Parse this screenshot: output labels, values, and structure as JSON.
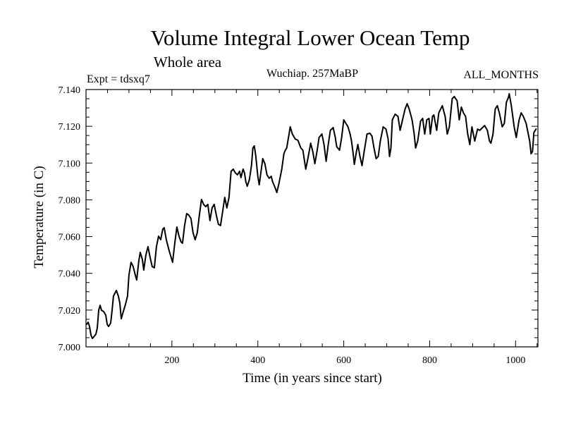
{
  "chart_data": {
    "type": "line",
    "title": "Volume Integral Lower Ocean Temp",
    "subtitle": "Whole area",
    "annotations": {
      "experiment": "Expt = tdsxq7",
      "period": "Wuchiap. 257MaBP",
      "season": "ALL_MONTHS"
    },
    "xlabel": "Time (in years since start)",
    "ylabel": "Temperature (in C)",
    "xlim": [
      0,
      1052
    ],
    "ylim": [
      7.0,
      7.14
    ],
    "x_major_step": 200,
    "x_minor_step": 50,
    "y_major_step": 0.02,
    "y_minor_step": 0.005,
    "x_tick_labels": [
      "200",
      "400",
      "600",
      "800",
      "1000"
    ],
    "y_tick_labels": [
      "7.000",
      "7.020",
      "7.040",
      "7.060",
      "7.080",
      "7.100",
      "7.120",
      "7.140"
    ],
    "grid": false,
    "legend": "none",
    "series": [
      {
        "name": "Volume integral lower ocean temperature",
        "color": "#000000",
        "x": [
          1.6,
          4.9,
          8.2,
          11.5,
          14.8,
          18.0,
          23.0,
          26.2,
          29.5,
          32.8,
          36.1,
          41.0,
          45.9,
          49.2,
          52.5,
          57.4,
          60.7,
          63.9,
          70.5,
          75.4,
          78.7,
          82.0,
          86.9,
          91.8,
          96.7,
          100.0,
          104.9,
          109.8,
          114.8,
          118.0,
          123.0,
          126.2,
          131.1,
          134.4,
          139.3,
          144.3,
          149.2,
          154.1,
          159.0,
          163.9,
          168.9,
          173.8,
          178.7,
          182.0,
          186.9,
          193.4,
          201.6,
          206.6,
          211.5,
          216.4,
          221.3,
          224.6,
          229.5,
          234.4,
          239.3,
          244.3,
          249.2,
          254.1,
          259.0,
          263.9,
          268.9,
          273.8,
          278.7,
          283.6,
          288.5,
          293.4,
          298.4,
          303.3,
          308.2,
          313.1,
          318.0,
          323.0,
          327.9,
          332.8,
          337.7,
          342.6,
          347.5,
          352.5,
          357.4,
          360.7,
          365.6,
          368.9,
          372.1,
          375.4,
          380.3,
          385.2,
          388.5,
          391.8,
          395.1,
          400.0,
          403.3,
          408.2,
          411.5,
          416.4,
          421.3,
          426.2,
          431.1,
          434.4,
          439.3,
          444.3,
          449.2,
          455.7,
          460.7,
          463.9,
          467.2,
          472.1,
          475.4,
          480.3,
          486.9,
          493.4,
          500.0,
          504.9,
          511.5,
          516.4,
          523.0,
          527.9,
          532.8,
          537.7,
          542.6,
          549.2,
          554.1,
          559.0,
          563.9,
          568.9,
          575.4,
          580.3,
          583.6,
          590.2,
          595.1,
          600.0,
          604.9,
          609.8,
          614.8,
          618.0,
          621.3,
          624.6,
          629.5,
          632.8,
          637.7,
          642.6,
          647.5,
          654.1,
          660.7,
          665.6,
          670.5,
          675.4,
          680.3,
          685.2,
          691.8,
          698.4,
          703.3,
          706.6,
          709.8,
          713.1,
          719.7,
          726.2,
          731.1,
          736.1,
          742.6,
          747.5,
          752.5,
          759.0,
          763.9,
          767.2,
          772.1,
          778.7,
          783.6,
          788.5,
          793.4,
          798.4,
          801.6,
          806.6,
          809.8,
          816.4,
          821.3,
          829.5,
          836.1,
          841.0,
          845.9,
          852.5,
          857.4,
          863.9,
          868.9,
          873.8,
          878.7,
          883.6,
          888.5,
          893.4,
          898.4,
          904.9,
          911.5,
          916.4,
          921.3,
          927.9,
          934.4,
          939.3,
          942.6,
          947.5,
          952.5,
          957.4,
          962.3,
          968.9,
          973.8,
          978.7,
          983.6,
          985.2,
          990.2,
          996.7,
          1001.6,
          1008.2,
          1013.1,
          1018.0,
          1024.6,
          1032.8,
          1036.1,
          1039.3,
          1042.6,
          1047.5
        ],
        "y": [
          7.0123,
          7.0134,
          7.0111,
          7.0065,
          7.0046,
          7.0054,
          7.0069,
          7.0103,
          7.0199,
          7.0226,
          7.0199,
          7.0192,
          7.0173,
          7.0123,
          7.0111,
          7.013,
          7.0199,
          7.0276,
          7.0307,
          7.0276,
          7.0238,
          7.0153,
          7.0192,
          7.023,
          7.0276,
          7.0391,
          7.046,
          7.0437,
          7.0391,
          7.0364,
          7.0468,
          7.0514,
          7.0476,
          7.0418,
          7.0499,
          7.0545,
          7.0487,
          7.0437,
          7.043,
          7.0545,
          7.0602,
          7.0583,
          7.0641,
          7.0648,
          7.0583,
          7.0525,
          7.046,
          7.0564,
          7.0652,
          7.0602,
          7.0571,
          7.0564,
          7.066,
          7.0725,
          7.0717,
          7.0698,
          7.0621,
          7.0583,
          7.0621,
          7.0717,
          7.0802,
          7.0775,
          7.0763,
          7.0775,
          7.0687,
          7.0756,
          7.0775,
          7.0717,
          7.0667,
          7.066,
          7.0736,
          7.0813,
          7.0756,
          7.0813,
          7.0955,
          7.0967,
          7.0947,
          7.0936,
          7.0955,
          7.0921,
          7.0967,
          7.0947,
          7.0898,
          7.0874,
          7.0909,
          7.0986,
          7.1082,
          7.1093,
          7.1043,
          7.0928,
          7.0882,
          7.0967,
          7.1024,
          7.0997,
          7.0936,
          7.0917,
          7.0928,
          7.0898,
          7.0871,
          7.084,
          7.089,
          7.0967,
          7.1051,
          7.107,
          7.1082,
          7.1151,
          7.1197,
          7.1158,
          7.1131,
          7.1124,
          7.1082,
          7.107,
          7.0967,
          7.1024,
          7.1108,
          7.1062,
          7.0997,
          7.1062,
          7.1139,
          7.1158,
          7.1101,
          7.1009,
          7.1101,
          7.1178,
          7.1193,
          7.1139,
          7.1089,
          7.107,
          7.1139,
          7.1235,
          7.1216,
          7.1197,
          7.1158,
          7.112,
          7.1062,
          7.0993,
          7.1062,
          7.1101,
          7.1036,
          7.0986,
          7.1062,
          7.1158,
          7.1162,
          7.1147,
          7.1082,
          7.1024,
          7.1036,
          7.112,
          7.1197,
          7.1185,
          7.1131,
          7.1036,
          7.1082,
          7.1235,
          7.1266,
          7.1254,
          7.1178,
          7.1227,
          7.1293,
          7.1323,
          7.1293,
          7.1235,
          7.1158,
          7.1082,
          7.112,
          7.1227,
          7.1243,
          7.1158,
          7.1235,
          7.1243,
          7.1158,
          7.1254,
          7.1262,
          7.1178,
          7.1273,
          7.1312,
          7.1254,
          7.1158,
          7.1197,
          7.135,
          7.1362,
          7.1339,
          7.1235,
          7.1304,
          7.1273,
          7.1254,
          7.1158,
          7.1101,
          7.1197,
          7.112,
          7.1185,
          7.1178,
          7.1189,
          7.1204,
          7.1178,
          7.112,
          7.1108,
          7.1158,
          7.1293,
          7.1312,
          7.1273,
          7.1197,
          7.1216,
          7.1331,
          7.1358,
          7.1377,
          7.1312,
          7.1197,
          7.1139,
          7.1235,
          7.1273,
          7.1254,
          7.1216,
          7.112,
          7.1051,
          7.1062,
          7.1166,
          7.1185
        ]
      }
    ]
  }
}
